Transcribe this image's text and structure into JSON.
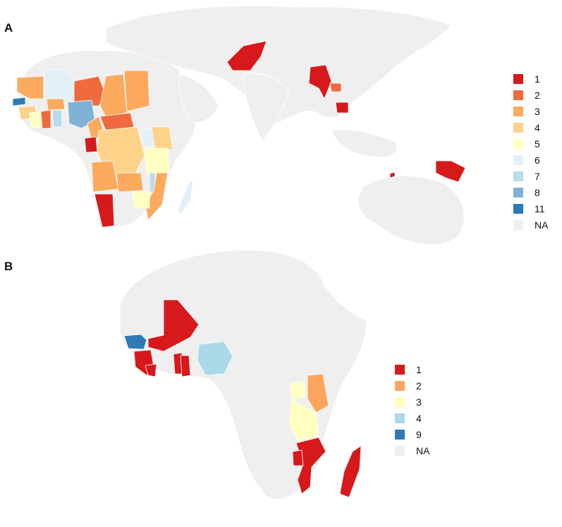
{
  "panel_a": {
    "label": "A",
    "legend": [
      {
        "label": "1",
        "color": "#d7191c"
      },
      {
        "label": "2",
        "color": "#ef6a3f"
      },
      {
        "label": "3",
        "color": "#fbaa5e"
      },
      {
        "label": "4",
        "color": "#fdd38a"
      },
      {
        "label": "5",
        "color": "#ffffbf"
      },
      {
        "label": "6",
        "color": "#e3f1f7"
      },
      {
        "label": "7",
        "color": "#b8dcec"
      },
      {
        "label": "8",
        "color": "#7fb3d6"
      },
      {
        "label": "11",
        "color": "#2c7bb6"
      },
      {
        "label": "NA",
        "color": "#efefef"
      }
    ]
  },
  "panel_b": {
    "label": "B",
    "legend": [
      {
        "label": "1",
        "color": "#d7191c"
      },
      {
        "label": "2",
        "color": "#fba55c"
      },
      {
        "label": "3",
        "color": "#ffffbf"
      },
      {
        "label": "4",
        "color": "#abd9e9"
      },
      {
        "label": "9",
        "color": "#2c7bb6"
      },
      {
        "label": "NA",
        "color": "#efefef"
      }
    ]
  }
}
